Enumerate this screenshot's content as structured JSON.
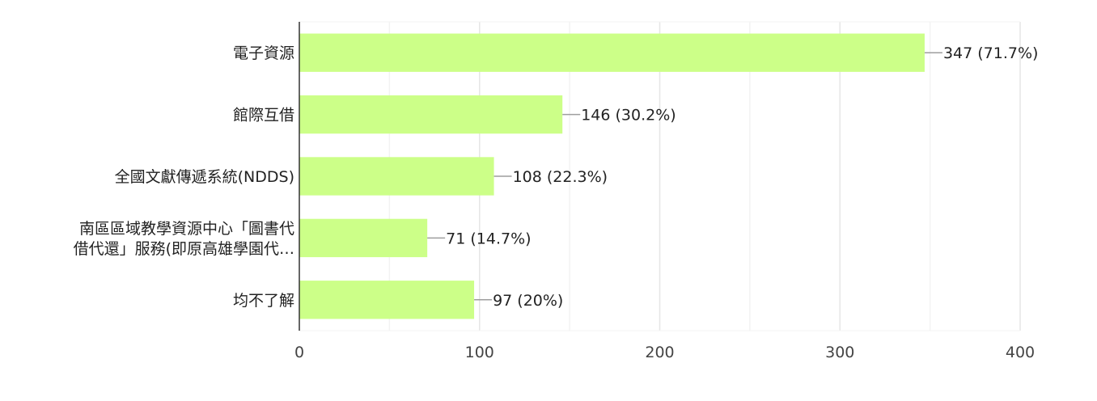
{
  "chart_data": {
    "type": "bar",
    "orientation": "horizontal",
    "categories": [
      [
        "電子資源"
      ],
      [
        "館際互借"
      ],
      [
        "全國文獻傳遞系統(NDDS)"
      ],
      [
        "南區區域教學資源中心「圖書代",
        "借代還」服務(即原高雄學園代…"
      ],
      [
        "均不了解"
      ]
    ],
    "values": [
      347,
      146,
      108,
      71,
      97
    ],
    "value_labels": [
      "347 (71.7%)",
      "146 (30.2%)",
      "108 (22.3%)",
      "71 (14.7%)",
      "97 (20%)"
    ],
    "x_ticks": [
      0,
      100,
      200,
      300,
      400
    ],
    "xlim": [
      0,
      400
    ],
    "grid": true,
    "legend": "none"
  },
  "colors": {
    "bar": "#ccff88",
    "grid_major": "#e6e6e6",
    "grid_minor": "#f3f3f3",
    "axis": "#333333",
    "connector": "#9e9e9e",
    "text": "#222222",
    "tick_text": "#444444"
  }
}
